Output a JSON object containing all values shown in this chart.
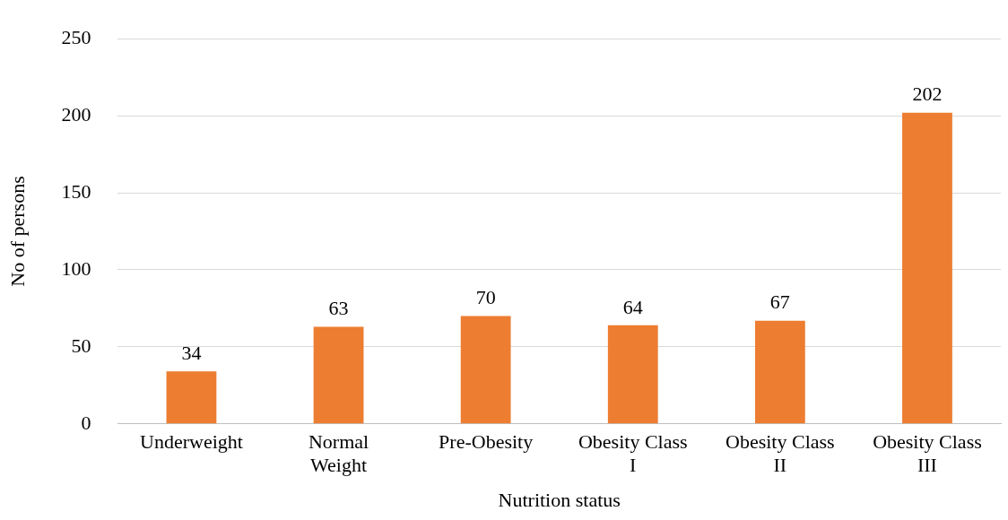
{
  "chart_data": {
    "type": "bar",
    "xlabel": "Nutrition status",
    "ylabel": "No of persons",
    "categories": [
      "Underweight",
      "Normal Weight",
      "Pre-Obesity",
      "Obesity Class I",
      "Obesity Class II",
      "Obesity Class III"
    ],
    "values": [
      34,
      63,
      70,
      64,
      67,
      202
    ],
    "color": "#ed7d31",
    "ylim": [
      0,
      250
    ],
    "yticks": [
      0,
      50,
      100,
      150,
      200,
      250
    ],
    "grid": "y",
    "data_labels": true,
    "legend": false
  }
}
